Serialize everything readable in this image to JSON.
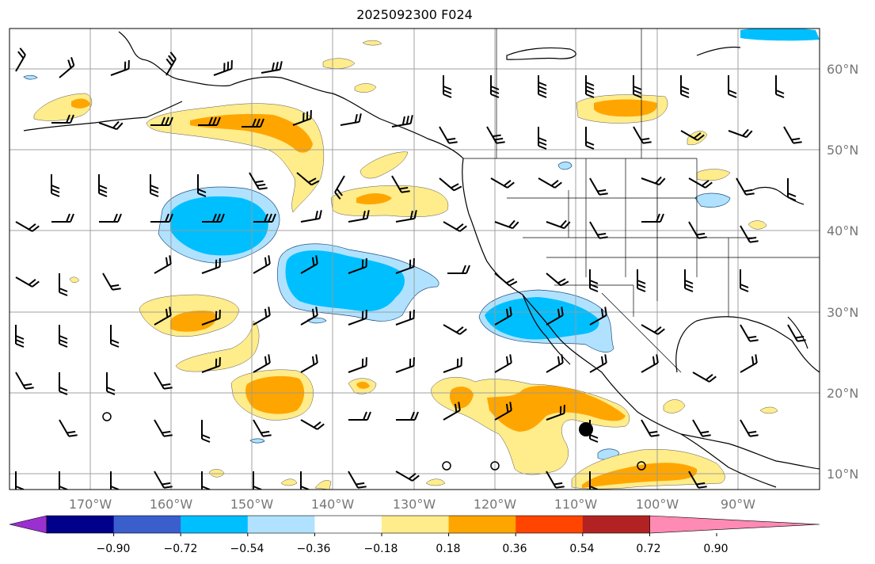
{
  "title": "2025092300 F024",
  "lat_labels": [
    "60°N",
    "50°N",
    "40°N",
    "30°N",
    "20°N",
    "10°N"
  ],
  "lon_labels": [
    "170°W",
    "160°W",
    "150°W",
    "140°W",
    "130°W",
    "120°W",
    "110°W",
    "100°W",
    "90°W"
  ],
  "colorbar": {
    "ticks": [
      "−0.90",
      "−0.72",
      "−0.54",
      "−0.36",
      "−0.18",
      "0.18",
      "0.36",
      "0.54",
      "0.72",
      "0.90"
    ],
    "colors": [
      "#9b30d0",
      "#00008b",
      "#3a5fcd",
      "#00bfff",
      "#b0e2ff",
      "#ffffff",
      "#ffec8b",
      "#ffa500",
      "#ff4500",
      "#b22222",
      "#ff8ab4"
    ]
  },
  "colors": {
    "negative_light": "#b0e2ff",
    "negative_medium": "#00bfff",
    "positive_light": "#ffec8b",
    "positive_medium": "#ffa500",
    "grid": "#999999",
    "coast": "#000000"
  },
  "icons": [
    "wind-barb-icon",
    "low-pressure-marker-icon",
    "calm-circle-icon"
  ]
}
